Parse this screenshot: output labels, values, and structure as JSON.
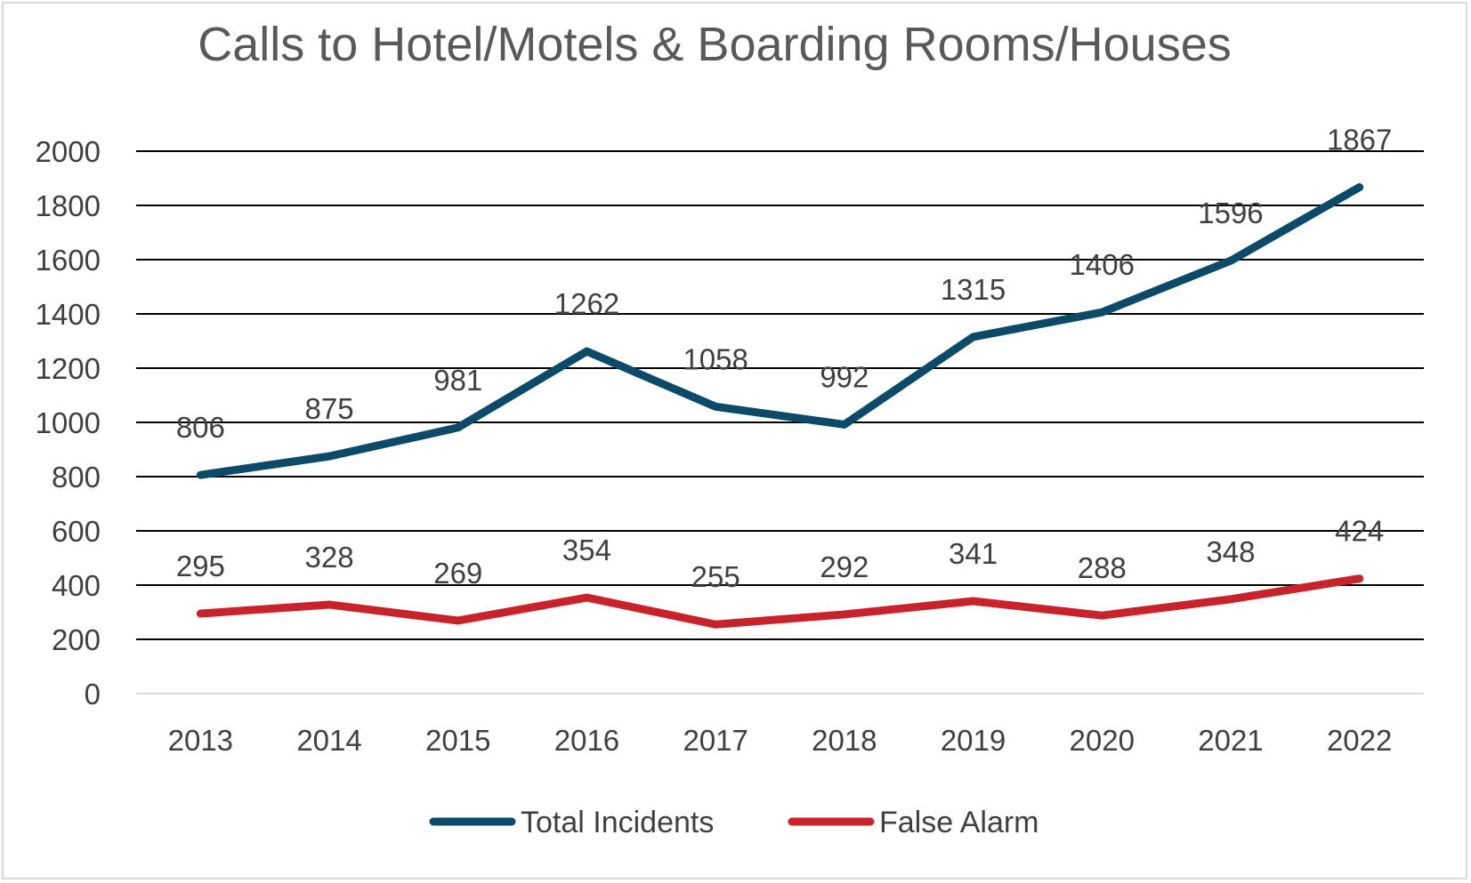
{
  "chart_data": {
    "type": "line",
    "title": "Calls to Hotel/Motels & Boarding Rooms/Houses",
    "xlabel": "",
    "ylabel": "",
    "x": [
      "2013",
      "2014",
      "2015",
      "2016",
      "2017",
      "2018",
      "2019",
      "2020",
      "2021",
      "2022"
    ],
    "yticks": [
      "0",
      "200",
      "400",
      "600",
      "800",
      "1000",
      "1200",
      "1400",
      "1600",
      "1800",
      "2000"
    ],
    "ylim": [
      0,
      2000
    ],
    "grid": true,
    "legend_position": "bottom",
    "series": [
      {
        "name": "Total Incidents",
        "color": "#0b4a68",
        "values": [
          806,
          875,
          981,
          1262,
          1058,
          992,
          1315,
          1406,
          1596,
          1867
        ],
        "labels": [
          "806",
          "875",
          "981",
          "1262",
          "1058",
          "992",
          "1315",
          "1406",
          "1596",
          "1867"
        ]
      },
      {
        "name": "False Alarm",
        "color": "#c8232b",
        "values": [
          295,
          328,
          269,
          354,
          255,
          292,
          341,
          288,
          348,
          424
        ],
        "labels": [
          "295",
          "328",
          "269",
          "354",
          "255",
          "292",
          "341",
          "288",
          "348",
          "424"
        ]
      }
    ]
  }
}
